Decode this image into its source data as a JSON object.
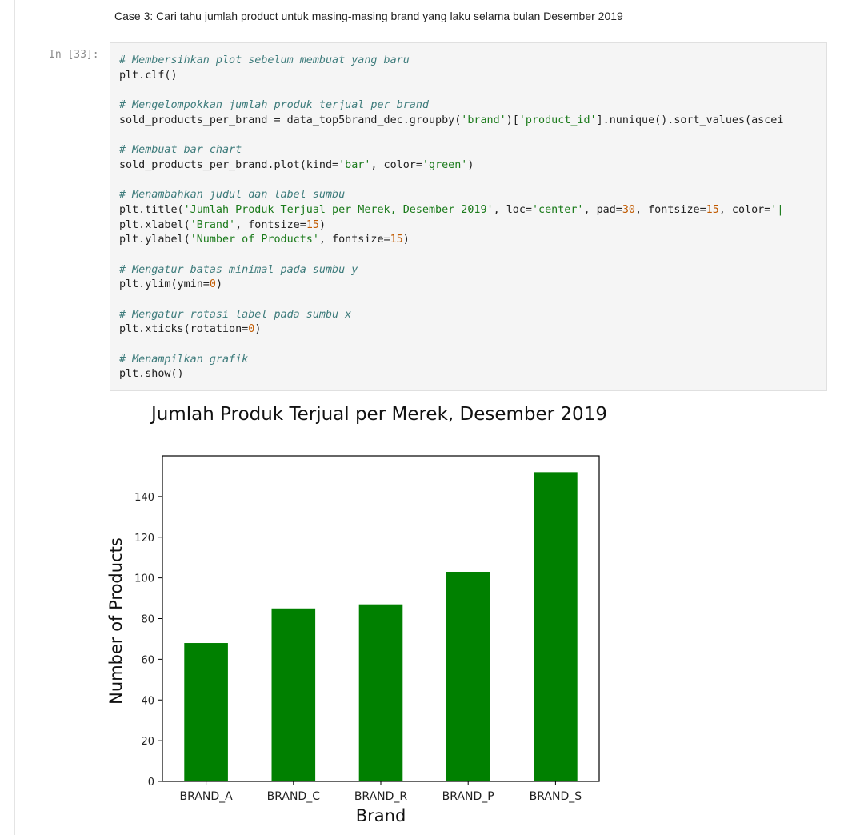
{
  "markdown": {
    "text": "Case 3: Cari tahu jumlah product untuk masing-masing brand yang laku selama bulan Desember 2019"
  },
  "cell": {
    "prompt": "In [33]:",
    "lines": [
      {
        "comment": "# Membersihkan plot sebelum membuat yang baru"
      },
      {
        "code": "plt.clf()"
      },
      {
        "gap": true
      },
      {
        "comment": "# Mengelompokkan jumlah produk terjual per brand"
      },
      {
        "parts": [
          [
            "t",
            "sold_products_per_brand = data_top5brand_dec.groupby("
          ],
          [
            "s",
            "'brand'"
          ],
          [
            "t",
            ")["
          ],
          [
            "s",
            "'product_id'"
          ],
          [
            "t",
            "].nunique().sort_values(ascei"
          ]
        ]
      },
      {
        "gap": true
      },
      {
        "comment": "# Membuat bar chart"
      },
      {
        "parts": [
          [
            "t",
            "sold_products_per_brand.plot(kind="
          ],
          [
            "s",
            "'bar'"
          ],
          [
            "t",
            ", color="
          ],
          [
            "s",
            "'green'"
          ],
          [
            "t",
            ")"
          ]
        ]
      },
      {
        "gap": true
      },
      {
        "comment": "# Menambahkan judul dan label sumbu"
      },
      {
        "parts": [
          [
            "t",
            "plt.title("
          ],
          [
            "s",
            "'Jumlah Produk Terjual per Merek, Desember 2019'"
          ],
          [
            "t",
            ", loc="
          ],
          [
            "s",
            "'center'"
          ],
          [
            "t",
            ", pad="
          ],
          [
            "n",
            "30"
          ],
          [
            "t",
            ", fontsize="
          ],
          [
            "n",
            "15"
          ],
          [
            "t",
            ", color="
          ],
          [
            "s",
            "'|"
          ]
        ]
      },
      {
        "parts": [
          [
            "t",
            "plt.xlabel("
          ],
          [
            "s",
            "'Brand'"
          ],
          [
            "t",
            ", fontsize="
          ],
          [
            "n",
            "15"
          ],
          [
            "t",
            ")"
          ]
        ]
      },
      {
        "parts": [
          [
            "t",
            "plt.ylabel("
          ],
          [
            "s",
            "'Number of Products'"
          ],
          [
            "t",
            ", fontsize="
          ],
          [
            "n",
            "15"
          ],
          [
            "t",
            ")"
          ]
        ]
      },
      {
        "gap": true
      },
      {
        "comment": "# Mengatur batas minimal pada sumbu y"
      },
      {
        "parts": [
          [
            "t",
            "plt.ylim(ymin="
          ],
          [
            "n",
            "0"
          ],
          [
            "t",
            ")"
          ]
        ]
      },
      {
        "gap": true
      },
      {
        "comment": "# Mengatur rotasi label pada sumbu x"
      },
      {
        "parts": [
          [
            "t",
            "plt.xticks(rotation="
          ],
          [
            "n",
            "0"
          ],
          [
            "t",
            ")"
          ]
        ]
      },
      {
        "gap": true
      },
      {
        "comment": "# Menampilkan grafik"
      },
      {
        "code": "plt.show()"
      }
    ]
  },
  "colors": {
    "bar": "#008000",
    "axis": "#000000"
  },
  "chart_data": {
    "type": "bar",
    "title": "Jumlah Produk Terjual per Merek, Desember 2019",
    "xlabel": "Brand",
    "ylabel": "Number of Products",
    "categories": [
      "BRAND_A",
      "BRAND_C",
      "BRAND_R",
      "BRAND_P",
      "BRAND_S"
    ],
    "values": [
      68,
      85,
      87,
      103,
      152
    ],
    "ylim": [
      0,
      160
    ],
    "yticks": [
      0,
      20,
      40,
      60,
      80,
      100,
      120,
      140
    ],
    "grid": false,
    "legend": false
  }
}
